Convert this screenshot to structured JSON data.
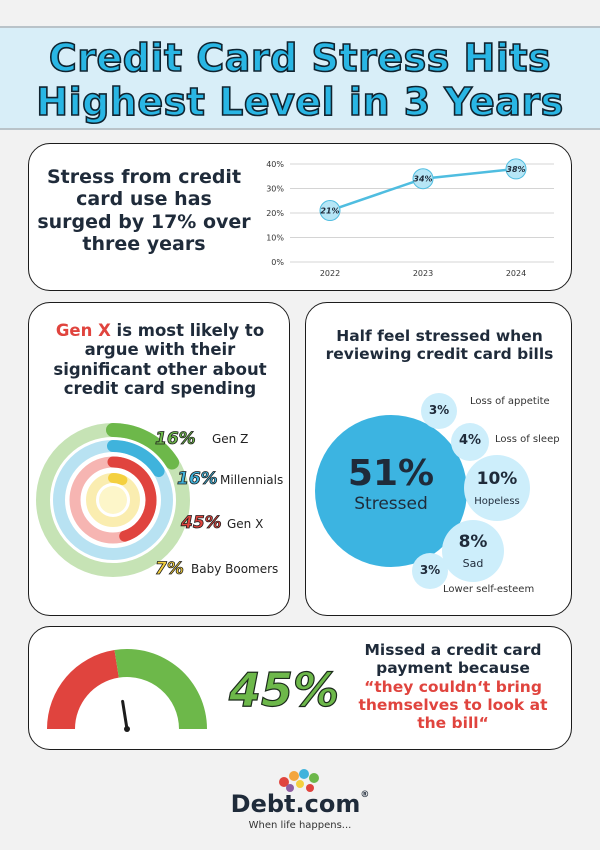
{
  "header": {
    "title_line1": "Credit Card Stress Hits",
    "title_line2": "Highest Level in 3 Years"
  },
  "trend_card": {
    "headline_lines": [
      "Stress from credit",
      "card use has",
      "surged by 17% over",
      "three years"
    ]
  },
  "genx_card": {
    "headline_red": "Gen X",
    "headline_rest_1": " is most likely to",
    "headline_lines": [
      "argue with their",
      "significant other about",
      "credit card spending"
    ]
  },
  "bills_card": {
    "headline_lines": [
      "Half feel stressed when",
      "reviewing credit card bills"
    ]
  },
  "missed_card": {
    "percent": "45%",
    "line1": "Missed a credit card",
    "line2": "payment  because",
    "quote_lines": [
      "“they couldn‘t bring",
      "themselves to look at",
      "the  bill“"
    ]
  },
  "footer": {
    "brand": "Debt.com",
    "registered": "®",
    "tagline": "When life happens..."
  },
  "colors": {
    "accent_blue": "#29b6e4",
    "line_blue": "#4fbde0",
    "red": "#e0443e",
    "green": "#6db84a",
    "yellow": "#f4d03f"
  },
  "chart_data": [
    {
      "type": "line",
      "title": "",
      "x": [
        "2022",
        "2023",
        "2024"
      ],
      "series": [
        {
          "values": [
            21,
            34,
            38
          ]
        }
      ],
      "data_labels": [
        "21%",
        "34%",
        "38%"
      ],
      "yticks": [
        "0%",
        "10%",
        "20%",
        "30%",
        "40%"
      ],
      "ylim": [
        0,
        40
      ],
      "grid": true
    },
    {
      "type": "radial-bar",
      "categories": [
        "Gen Z",
        "Millennials",
        "Gen X",
        "Baby Boomers"
      ],
      "values": [
        16,
        16,
        45,
        7
      ],
      "labels": [
        "16%",
        "16%",
        "45%",
        "7%"
      ],
      "colors": [
        "#6db84a",
        "#3fb3dc",
        "#e0443e",
        "#f4d03f"
      ]
    },
    {
      "type": "bubble",
      "items": [
        {
          "label": "Stressed",
          "value": 51,
          "text": "51%"
        },
        {
          "label": "Loss of appetite",
          "value": 3,
          "text": "3%"
        },
        {
          "label": "Loss of sleep",
          "value": 4,
          "text": "4%"
        },
        {
          "label": "Hopeless",
          "value": 10,
          "text": "10%"
        },
        {
          "label": "Sad",
          "value": 8,
          "text": "8%"
        },
        {
          "label": "Lower self-esteem",
          "value": 3,
          "text": "3%"
        }
      ]
    },
    {
      "type": "gauge",
      "value": 45,
      "unit": "%"
    }
  ]
}
